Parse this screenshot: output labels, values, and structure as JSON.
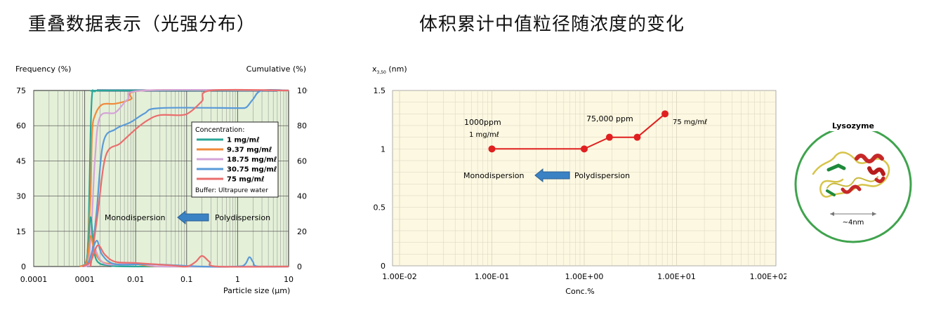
{
  "titles": {
    "left": "重叠数据表示（光强分布）",
    "right": "体积累计中值粒径随浓度的变化"
  },
  "chart_data": [
    {
      "type": "line",
      "xlabel": "Particle size (μm)",
      "ylabel_left": "Frequency (%)",
      "ylabel_right": "Cumulative (%)",
      "x_scale": "log",
      "xlim": [
        0.0001,
        10
      ],
      "ylim_left": [
        0,
        75
      ],
      "ylim_right": [
        0,
        100
      ],
      "x_tick_labels": [
        "0.0001",
        "0001",
        "0.01",
        "0.1",
        "1",
        "10"
      ],
      "y_left_ticks": [
        "0",
        "15",
        "30",
        "45",
        "60",
        "75"
      ],
      "y_right_ticks": [
        "0",
        "20",
        "40",
        "60",
        "80",
        "100"
      ],
      "legend": {
        "title": "Concentration:",
        "placement": "right",
        "footer": "Buffer: Ultrapure water"
      },
      "series": [
        {
          "name": "1 mg/mℓ",
          "color": "#2aa597",
          "cumulative": [
            [
              0.0011,
              0
            ],
            [
              0.0012,
              25
            ],
            [
              0.0013,
              75
            ],
            [
              0.0014,
              98
            ],
            [
              0.0016,
              99.5
            ],
            [
              0.003,
              100
            ],
            [
              10,
              100
            ]
          ],
          "frequency": [
            [
              0.0008,
              0
            ],
            [
              0.0011,
              3
            ],
            [
              0.0013,
              21
            ],
            [
              0.0015,
              8
            ],
            [
              0.0018,
              2
            ],
            [
              0.003,
              0.5
            ],
            [
              0.01,
              0
            ],
            [
              10,
              0
            ]
          ]
        },
        {
          "name": "9.37 mg/mℓ",
          "color": "#f08a3c",
          "cumulative": [
            [
              0.0011,
              0
            ],
            [
              0.0013,
              40
            ],
            [
              0.0014,
              76
            ],
            [
              0.0016,
              86
            ],
            [
              0.0022,
              92
            ],
            [
              0.004,
              92.5
            ],
            [
              0.008,
              95
            ],
            [
              0.015,
              100
            ],
            [
              10,
              100
            ]
          ],
          "frequency": [
            [
              0.0008,
              0
            ],
            [
              0.0011,
              2
            ],
            [
              0.0013,
              13
            ],
            [
              0.0016,
              6
            ],
            [
              0.0025,
              1.5
            ],
            [
              0.01,
              1
            ],
            [
              0.02,
              0.2
            ],
            [
              0.05,
              0
            ],
            [
              10,
              0
            ]
          ]
        },
        {
          "name": "18.75 mg/mℓ",
          "color": "#d4a4d8",
          "cumulative": [
            [
              0.0012,
              0
            ],
            [
              0.0014,
              30
            ],
            [
              0.0016,
              62
            ],
            [
              0.002,
              85
            ],
            [
              0.004,
              87.5
            ],
            [
              0.007,
              95
            ],
            [
              0.015,
              100
            ],
            [
              10,
              100
            ]
          ],
          "frequency": [
            [
              0.0009,
              0
            ],
            [
              0.0012,
              1
            ],
            [
              0.0015,
              8
            ],
            [
              0.002,
              3
            ],
            [
              0.003,
              0.8
            ],
            [
              0.01,
              1.5
            ],
            [
              0.02,
              0.4
            ],
            [
              0.05,
              0
            ],
            [
              10,
              0
            ]
          ]
        },
        {
          "name": "30.75 mg/mℓ",
          "color": "#5a9ad8",
          "cumulative": [
            [
              0.0013,
              0
            ],
            [
              0.0017,
              30
            ],
            [
              0.0023,
              70
            ],
            [
              0.004,
              78
            ],
            [
              0.008,
              82
            ],
            [
              0.015,
              87
            ],
            [
              0.03,
              90
            ],
            [
              1,
              90
            ],
            [
              1.2,
              90
            ],
            [
              1.5,
              90.5
            ],
            [
              2,
              95
            ],
            [
              3,
              100
            ],
            [
              10,
              100
            ]
          ],
          "frequency": [
            [
              0.0009,
              0
            ],
            [
              0.0012,
              2
            ],
            [
              0.0017,
              11
            ],
            [
              0.0022,
              5
            ],
            [
              0.004,
              1
            ],
            [
              0.02,
              1
            ],
            [
              0.2,
              0
            ],
            [
              1,
              0
            ],
            [
              1.4,
              1
            ],
            [
              1.7,
              4
            ],
            [
              2,
              2
            ],
            [
              2.5,
              0
            ],
            [
              10,
              0
            ]
          ]
        },
        {
          "name": "75 mg/mℓ",
          "color": "#ea6d6d",
          "cumulative": [
            [
              0.0013,
              0
            ],
            [
              0.0018,
              30
            ],
            [
              0.0026,
              63
            ],
            [
              0.005,
              70
            ],
            [
              0.01,
              78
            ],
            [
              0.017,
              83
            ],
            [
              0.03,
              86
            ],
            [
              0.08,
              86
            ],
            [
              0.12,
              88
            ],
            [
              0.2,
              94
            ],
            [
              0.3,
              100
            ],
            [
              10,
              100
            ]
          ],
          "frequency": [
            [
              0.0009,
              0
            ],
            [
              0.0013,
              2
            ],
            [
              0.0018,
              9
            ],
            [
              0.0025,
              5
            ],
            [
              0.004,
              2
            ],
            [
              0.01,
              1.5
            ],
            [
              0.05,
              0.5
            ],
            [
              0.1,
              0
            ],
            [
              0.15,
              2
            ],
            [
              0.2,
              4.5
            ],
            [
              0.28,
              2
            ],
            [
              0.4,
              0
            ],
            [
              10,
              0
            ]
          ]
        }
      ],
      "annotations": {
        "mono": "Monodispersion",
        "poly": "Polydispersion"
      }
    },
    {
      "type": "line",
      "xlabel": "Conc.%",
      "ylabel": "x3,50 (nm)",
      "x_scale": "log",
      "xlim": [
        0.01,
        100
      ],
      "ylim": [
        0,
        1.5
      ],
      "x_tick_labels": [
        "1.00E-02",
        "1.00E-01",
        "1.00E+00",
        "1.00E+01",
        "1.00E+02"
      ],
      "y_tick_labels": [
        "0",
        "0.5",
        "1",
        "1.5"
      ],
      "series": [
        {
          "color": "#e02020",
          "x": [
            0.1,
            1.0,
            1.875,
            3.75,
            7.5
          ],
          "y": [
            1.0,
            1.0,
            1.1,
            1.1,
            1.3
          ]
        }
      ],
      "annotations": {
        "a1_line1": "1000ppm",
        "a1_line2": "1 mg/mℓ",
        "a2": "75,000 ppm",
        "a3": "75 mg/mℓ",
        "mono": "Monodispersion",
        "poly": "Polydispersion"
      }
    }
  ],
  "lysozyme": {
    "label": "Lysozyme",
    "size": "~4nm",
    "circle_color": "#3fa34d"
  }
}
